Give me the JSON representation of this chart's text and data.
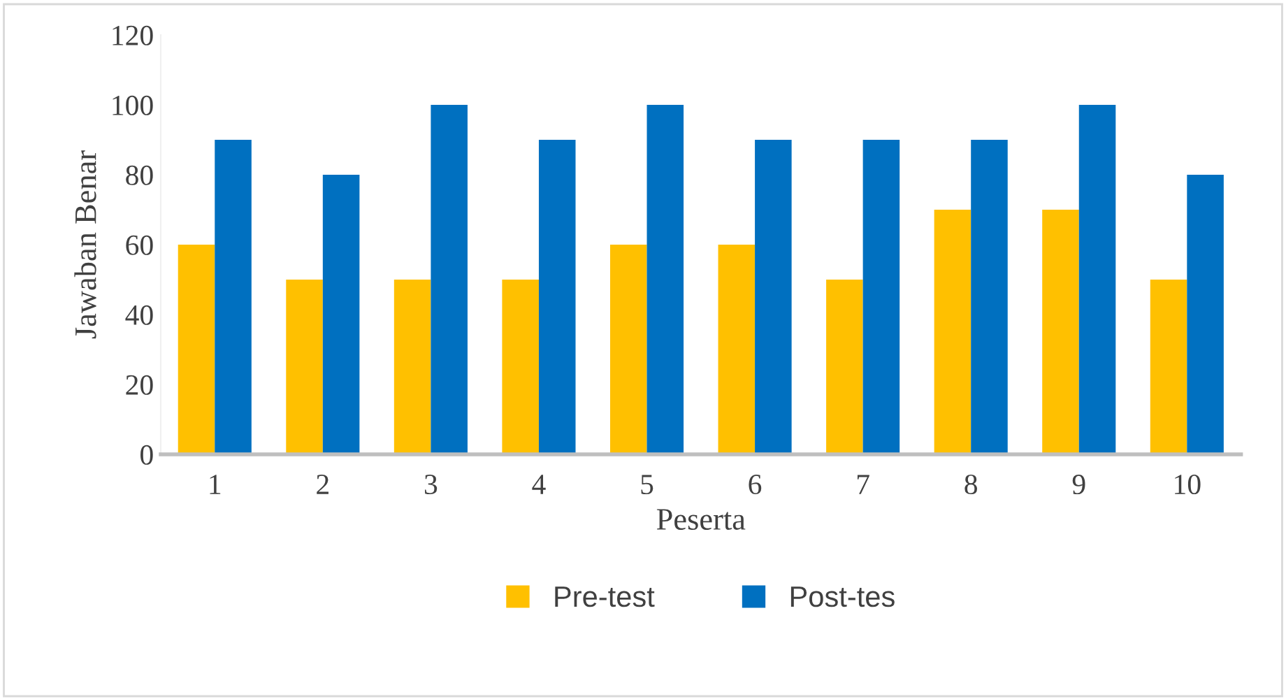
{
  "chart_data": {
    "type": "bar",
    "xlabel": "Peserta",
    "ylabel": "Jawaban Benar",
    "categories": [
      "1",
      "2",
      "3",
      "4",
      "5",
      "6",
      "7",
      "8",
      "9",
      "10"
    ],
    "series": [
      {
        "name": "Pre-test",
        "color": "#ffc000",
        "values": [
          60,
          50,
          50,
          50,
          60,
          60,
          50,
          70,
          70,
          50
        ]
      },
      {
        "name": "Post-tes",
        "color": "#0070c0",
        "values": [
          90,
          80,
          100,
          90,
          100,
          90,
          90,
          90,
          100,
          80
        ]
      }
    ],
    "ylim": [
      0,
      120
    ],
    "yticks": [
      0,
      20,
      40,
      60,
      80,
      100,
      120
    ],
    "grid": false,
    "legend": "bottom"
  }
}
